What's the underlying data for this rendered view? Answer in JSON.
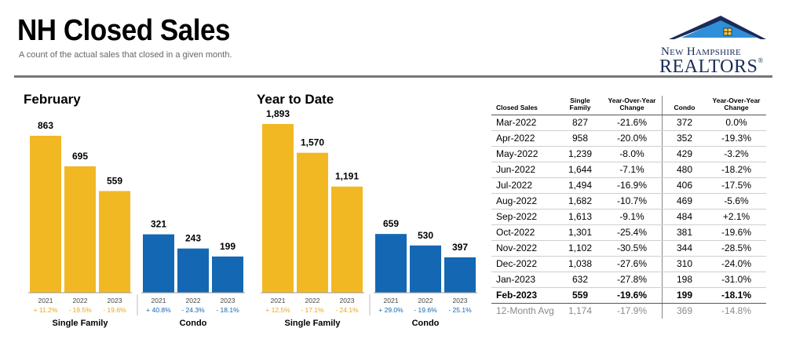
{
  "header": {
    "title": "NH Closed Sales",
    "subtitle": "A count of the actual sales that closed in a given month."
  },
  "logo": {
    "line1": "New Hampshire",
    "line2": "REALTORS",
    "mark": "®"
  },
  "colors": {
    "single_family": "#F2B824",
    "condo": "#1467B3",
    "sf_change": "#E4A81E",
    "condo_change": "#1467B3",
    "rule": "#777777"
  },
  "chart_data": [
    {
      "type": "bar",
      "title": "February",
      "groups": [
        {
          "name": "Single Family",
          "categories": [
            "2021",
            "2022",
            "2023"
          ],
          "values": [
            863,
            695,
            559
          ],
          "value_labels": [
            "863",
            "695",
            "559"
          ],
          "changes": [
            "+ 11.2%",
            "- 19.5%",
            "- 19.6%"
          ]
        },
        {
          "name": "Condo",
          "categories": [
            "2021",
            "2022",
            "2023"
          ],
          "values": [
            321,
            243,
            199
          ],
          "value_labels": [
            "321",
            "243",
            "199"
          ],
          "changes": [
            "+ 40.8%",
            "- 24.3%",
            "- 18.1%"
          ]
        }
      ]
    },
    {
      "type": "bar",
      "title": "Year to Date",
      "groups": [
        {
          "name": "Single Family",
          "categories": [
            "2021",
            "2022",
            "2023"
          ],
          "values": [
            1893,
            1570,
            1191
          ],
          "value_labels": [
            "1,893",
            "1,570",
            "1,191"
          ],
          "changes": [
            "+ 12.5%",
            "- 17.1%",
            "- 24.1%"
          ]
        },
        {
          "name": "Condo",
          "categories": [
            "2021",
            "2022",
            "2023"
          ],
          "values": [
            659,
            530,
            397
          ],
          "value_labels": [
            "659",
            "530",
            "397"
          ],
          "changes": [
            "+ 29.0%",
            "- 19.6%",
            "- 25.1%"
          ]
        }
      ]
    },
    {
      "type": "table",
      "columns": [
        "Closed Sales",
        "Single Family",
        "Year-Over-Year Change",
        "Condo",
        "Year-Over-Year Change"
      ],
      "rows": [
        [
          "Mar-2022",
          "827",
          "-21.6%",
          "372",
          "0.0%"
        ],
        [
          "Apr-2022",
          "958",
          "-20.0%",
          "352",
          "-19.3%"
        ],
        [
          "May-2022",
          "1,239",
          "-8.0%",
          "429",
          "-3.2%"
        ],
        [
          "Jun-2022",
          "1,644",
          "-7.1%",
          "480",
          "-18.2%"
        ],
        [
          "Jul-2022",
          "1,494",
          "-16.9%",
          "406",
          "-17.5%"
        ],
        [
          "Aug-2022",
          "1,682",
          "-10.7%",
          "469",
          "-5.6%"
        ],
        [
          "Sep-2022",
          "1,613",
          "-9.1%",
          "484",
          "+2.1%"
        ],
        [
          "Oct-2022",
          "1,301",
          "-25.4%",
          "381",
          "-19.6%"
        ],
        [
          "Nov-2022",
          "1,102",
          "-30.5%",
          "344",
          "-28.5%"
        ],
        [
          "Dec-2022",
          "1,038",
          "-27.6%",
          "310",
          "-24.0%"
        ],
        [
          "Jan-2023",
          "632",
          "-27.8%",
          "198",
          "-31.0%"
        ],
        [
          "Feb-2023",
          "559",
          "-19.6%",
          "199",
          "-18.1%"
        ]
      ],
      "summary_row": [
        "12-Month Avg",
        "1,174",
        "-17.9%",
        "369",
        "-14.8%"
      ]
    }
  ]
}
